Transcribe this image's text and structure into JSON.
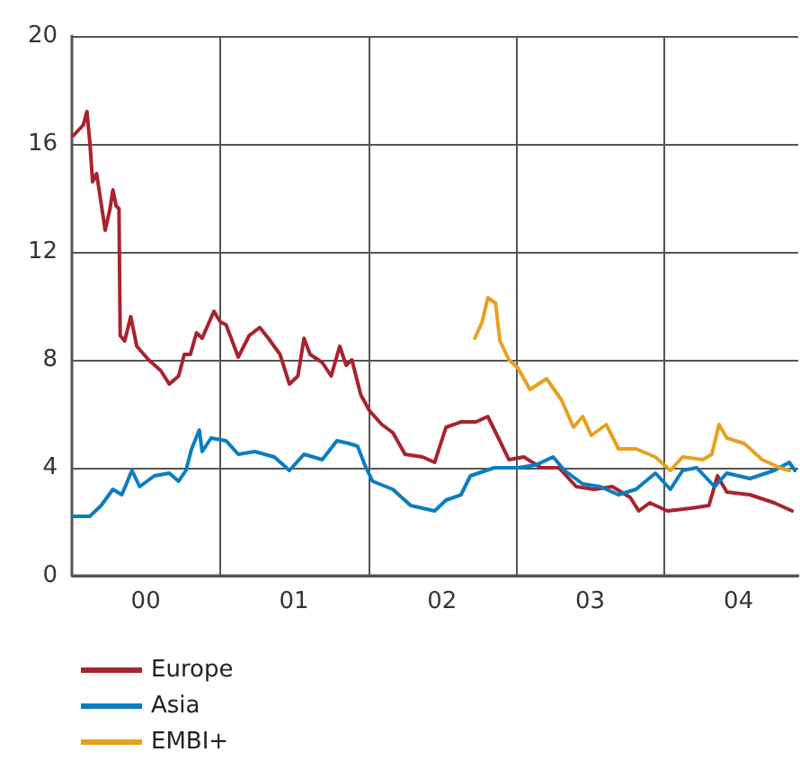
{
  "chart_data": {
    "type": "line",
    "xlim": [
      "2000-01-01",
      "2004-11-25"
    ],
    "xticks": [
      {
        "value": "2000-07-01",
        "label": "00"
      },
      {
        "value": "2001-01-01",
        "label": null
      },
      {
        "value": "2001-07-01",
        "label": "01"
      },
      {
        "value": "2002-01-01",
        "label": null
      },
      {
        "value": "2002-07-01",
        "label": "02"
      },
      {
        "value": "2003-01-01",
        "label": null
      },
      {
        "value": "2003-07-01",
        "label": "03"
      },
      {
        "value": "2004-01-01",
        "label": null
      },
      {
        "value": "2004-07-01",
        "label": "04"
      }
    ],
    "ylim": [
      0,
      20
    ],
    "yticks": [
      0,
      4,
      8,
      12,
      16,
      20
    ],
    "grid": true,
    "legend": "bottom left",
    "marker": "none",
    "line_style": "solid",
    "series": [
      {
        "name": "Europe",
        "color": "#a8232e",
        "x": [
          "2000-01-04",
          "2000-01-29",
          "2000-02-07",
          "2000-02-14",
          "2000-02-21",
          "2000-03-02",
          "2000-03-13",
          "2000-03-23",
          "2000-04-04",
          "2000-04-11",
          "2000-04-19",
          "2000-04-26",
          "2000-04-29",
          "2000-05-10",
          "2000-05-25",
          "2000-06-09",
          "2000-07-08",
          "2000-08-07",
          "2000-08-28",
          "2000-09-20",
          "2000-10-04",
          "2000-10-19",
          "2000-11-03",
          "2000-11-17",
          "2000-12-16",
          "2001-01-01",
          "2001-01-15",
          "2001-02-14",
          "2001-03-13",
          "2001-04-08",
          "2001-04-29",
          "2001-05-28",
          "2001-06-20",
          "2001-07-11",
          "2001-07-26",
          "2001-08-10",
          "2001-09-09",
          "2001-10-01",
          "2001-10-22",
          "2001-11-07",
          "2001-11-21",
          "2001-12-13",
          "2002-01-04",
          "2002-02-03",
          "2002-03-02",
          "2002-04-01",
          "2002-05-14",
          "2002-06-13",
          "2002-07-11",
          "2002-08-17",
          "2002-09-23",
          "2002-10-22",
          "2002-11-14",
          "2002-12-13",
          "2003-01-19",
          "2003-03-02",
          "2003-04-15",
          "2003-05-28",
          "2003-07-11",
          "2003-08-25",
          "2003-10-08",
          "2003-10-29",
          "2003-11-25",
          "2004-01-08",
          "2004-03-05",
          "2004-04-19",
          "2004-05-10",
          "2004-06-02",
          "2004-07-29",
          "2004-09-27",
          "2004-11-10"
        ],
        "values": [
          16.3,
          16.7,
          17.2,
          16.1,
          14.6,
          14.9,
          13.8,
          12.8,
          13.6,
          14.3,
          13.7,
          13.6,
          8.9,
          8.7,
          9.6,
          8.5,
          8.0,
          7.6,
          7.1,
          7.4,
          8.2,
          8.2,
          9.0,
          8.8,
          9.8,
          9.4,
          9.3,
          8.1,
          8.9,
          9.2,
          8.8,
          8.2,
          7.1,
          7.4,
          8.8,
          8.2,
          7.9,
          7.4,
          8.5,
          7.8,
          8.0,
          6.7,
          6.1,
          5.6,
          5.3,
          4.5,
          4.4,
          4.2,
          5.5,
          5.7,
          5.7,
          5.9,
          5.2,
          4.3,
          4.4,
          4.0,
          4.0,
          3.3,
          3.2,
          3.3,
          2.9,
          2.4,
          2.7,
          2.4,
          2.5,
          2.6,
          3.7,
          3.1,
          3.0,
          2.7,
          2.4
        ]
      },
      {
        "name": "Asia",
        "color": "#0a7dc2",
        "x": [
          "2000-01-04",
          "2000-02-14",
          "2000-03-13",
          "2000-04-11",
          "2000-05-03",
          "2000-05-28",
          "2000-06-16",
          "2000-07-22",
          "2000-08-28",
          "2000-09-20",
          "2000-10-08",
          "2000-10-22",
          "2000-11-10",
          "2000-11-17",
          "2000-12-09",
          "2001-01-15",
          "2001-02-14",
          "2001-03-27",
          "2001-05-14",
          "2001-06-20",
          "2001-07-26",
          "2001-09-09",
          "2001-10-15",
          "2001-11-14",
          "2001-12-05",
          "2001-12-23",
          "2002-01-11",
          "2002-03-02",
          "2002-04-15",
          "2002-06-13",
          "2002-07-11",
          "2002-08-17",
          "2002-09-09",
          "2002-11-07",
          "2003-01-04",
          "2003-02-17",
          "2003-04-01",
          "2003-04-29",
          "2003-06-13",
          "2003-07-26",
          "2003-09-09",
          "2003-10-22",
          "2003-12-09",
          "2004-01-15",
          "2004-02-14",
          "2004-03-20",
          "2004-05-03",
          "2004-06-02",
          "2004-07-29",
          "2004-09-27",
          "2004-11-03",
          "2004-11-17"
        ],
        "values": [
          2.2,
          2.2,
          2.6,
          3.2,
          3.0,
          3.9,
          3.3,
          3.7,
          3.8,
          3.5,
          3.9,
          4.7,
          5.4,
          4.6,
          5.1,
          5.0,
          4.5,
          4.6,
          4.4,
          3.9,
          4.5,
          4.3,
          5.0,
          4.9,
          4.8,
          4.1,
          3.5,
          3.2,
          2.6,
          2.4,
          2.8,
          3.0,
          3.7,
          4.0,
          4.0,
          4.1,
          4.4,
          3.9,
          3.4,
          3.3,
          3.0,
          3.2,
          3.8,
          3.2,
          3.9,
          4.0,
          3.3,
          3.8,
          3.6,
          3.9,
          4.2,
          3.9
        ]
      },
      {
        "name": "EMBI+",
        "color": "#e8a020",
        "x": [
          "2002-09-20",
          "2002-10-08",
          "2002-10-22",
          "2002-11-10",
          "2002-11-21",
          "2002-12-13",
          "2003-01-04",
          "2003-02-03",
          "2003-03-16",
          "2003-04-22",
          "2003-05-21",
          "2003-06-13",
          "2003-07-04",
          "2003-08-10",
          "2003-09-09",
          "2003-10-22",
          "2003-12-09",
          "2004-01-15",
          "2004-02-14",
          "2004-04-04",
          "2004-04-26",
          "2004-05-14",
          "2004-06-02",
          "2004-07-15",
          "2004-08-28",
          "2004-10-11",
          "2004-11-03"
        ],
        "values": [
          8.8,
          9.4,
          10.3,
          10.1,
          8.7,
          8.0,
          7.7,
          6.9,
          7.3,
          6.5,
          5.5,
          5.9,
          5.2,
          5.6,
          4.7,
          4.7,
          4.4,
          3.9,
          4.4,
          4.3,
          4.5,
          5.6,
          5.1,
          4.9,
          4.3,
          4.0,
          3.9
        ]
      }
    ]
  }
}
